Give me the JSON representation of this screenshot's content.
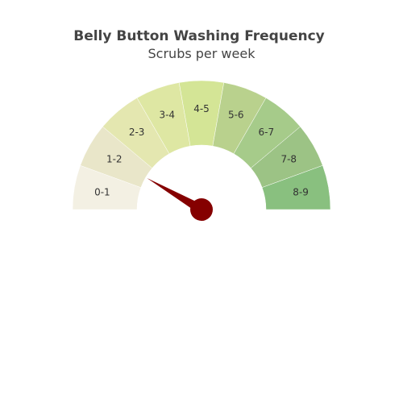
{
  "chart_data": {
    "type": "gauge",
    "title": "Belly Button Washing Frequency",
    "subtitle": "Scrubs per week",
    "range": [
      0,
      9
    ],
    "value": 1.5,
    "segments": [
      {
        "label": "0-1",
        "color": "#f3f0e3"
      },
      {
        "label": "1-2",
        "color": "#e9e6c9"
      },
      {
        "label": "2-3",
        "color": "#e4e7b0"
      },
      {
        "label": "3-4",
        "color": "#dee7a3"
      },
      {
        "label": "4-5",
        "color": "#d4e596"
      },
      {
        "label": "5-6",
        "color": "#b9d18d"
      },
      {
        "label": "6-7",
        "color": "#a6cb8a"
      },
      {
        "label": "7-8",
        "color": "#9cc385"
      },
      {
        "label": "8-9",
        "color": "#89c07f"
      }
    ],
    "needle_color": "#850000"
  }
}
